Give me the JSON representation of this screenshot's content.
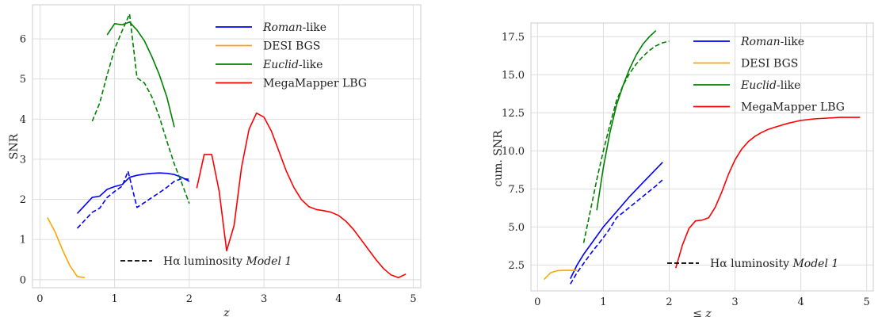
{
  "chart_data": [
    {
      "type": "line",
      "ylabel": "SNR",
      "xlabel": "z",
      "xlim": [
        -0.1,
        5.1
      ],
      "ylim": [
        -0.2,
        6.85
      ],
      "xticks": [
        0,
        1,
        2,
        3,
        4,
        5
      ],
      "yticks": [
        0,
        1,
        2,
        3,
        4,
        5,
        6
      ],
      "grid": true,
      "legend_position": "top-right",
      "style_note": "Hα luminosity Model 1",
      "series": [
        {
          "name": "Roman-like",
          "name_italic": "Roman",
          "name_rest": "-like",
          "color": "#0000ff",
          "dash": false,
          "x": [
            0.5,
            0.7,
            0.8,
            0.9,
            1.0,
            1.1,
            1.2,
            1.3,
            1.4,
            1.5,
            1.6,
            1.7,
            1.8,
            1.9,
            2.0
          ],
          "y": [
            1.65,
            2.05,
            2.08,
            2.25,
            2.32,
            2.37,
            2.55,
            2.6,
            2.63,
            2.65,
            2.66,
            2.65,
            2.62,
            2.55,
            2.45
          ]
        },
        {
          "name": "Roman-like",
          "color": "#0000ff",
          "dash": true,
          "x": [
            0.5,
            0.7,
            0.8,
            0.9,
            1.0,
            1.1,
            1.18,
            1.3,
            1.4,
            1.5,
            1.6,
            1.7,
            1.8,
            1.9,
            2.0
          ],
          "y": [
            1.28,
            1.68,
            1.78,
            2.05,
            2.2,
            2.33,
            2.7,
            1.8,
            1.92,
            2.05,
            2.17,
            2.3,
            2.45,
            2.52,
            2.5
          ]
        },
        {
          "name": "DESI BGS",
          "color": "#ffa500",
          "dash": false,
          "x": [
            0.1,
            0.2,
            0.3,
            0.4,
            0.5,
            0.6
          ],
          "y": [
            1.55,
            1.2,
            0.75,
            0.35,
            0.08,
            0.05
          ]
        },
        {
          "name": "Euclid-like",
          "name_italic": "Euclid",
          "name_rest": "-like",
          "color": "#008000",
          "dash": false,
          "x": [
            0.9,
            1.0,
            1.1,
            1.2,
            1.3,
            1.4,
            1.5,
            1.6,
            1.7,
            1.8
          ],
          "y": [
            6.1,
            6.38,
            6.35,
            6.42,
            6.22,
            5.95,
            5.55,
            5.1,
            4.55,
            3.8
          ]
        },
        {
          "name": "Euclid-like",
          "color": "#008000",
          "dash": true,
          "x": [
            0.7,
            0.8,
            0.9,
            1.0,
            1.1,
            1.2,
            1.3,
            1.4,
            1.5,
            1.6,
            1.7,
            1.8,
            1.9,
            2.0
          ],
          "y": [
            3.95,
            4.4,
            5.1,
            5.75,
            6.2,
            6.62,
            5.03,
            4.9,
            4.55,
            4.05,
            3.45,
            2.88,
            2.4,
            1.9
          ]
        },
        {
          "name": "MegaMapper LBG",
          "color": "#ff0000",
          "dash": false,
          "x": [
            2.1,
            2.2,
            2.3,
            2.4,
            2.5,
            2.6,
            2.7,
            2.8,
            2.9,
            3.0,
            3.1,
            3.2,
            3.3,
            3.4,
            3.5,
            3.6,
            3.7,
            3.8,
            3.9,
            4.0,
            4.1,
            4.2,
            4.3,
            4.4,
            4.5,
            4.6,
            4.7,
            4.8,
            4.9
          ],
          "y": [
            2.28,
            3.12,
            3.12,
            2.2,
            0.72,
            1.35,
            2.8,
            3.75,
            4.15,
            4.05,
            3.7,
            3.2,
            2.7,
            2.3,
            2.0,
            1.82,
            1.75,
            1.72,
            1.68,
            1.6,
            1.45,
            1.25,
            1.0,
            0.75,
            0.5,
            0.28,
            0.12,
            0.05,
            0.14
          ]
        }
      ]
    },
    {
      "type": "line",
      "ylabel": "cum. SNR",
      "xlabel": "≤ z",
      "xlim": [
        -0.1,
        5.1
      ],
      "ylim": [
        0.8,
        18.4
      ],
      "xticks": [
        0,
        1,
        2,
        3,
        4,
        5
      ],
      "yticks": [
        2.5,
        5.0,
        7.5,
        10.0,
        12.5,
        15.0,
        17.5
      ],
      "ytick_labels": [
        "2.5",
        "5.0",
        "7.5",
        "10.0",
        "12.5",
        "15.0",
        "17.5"
      ],
      "grid": true,
      "legend_position": "top-right",
      "style_note": "Hα luminosity Model 1",
      "series": [
        {
          "name": "Roman-like",
          "name_italic": "Roman",
          "name_rest": "-like",
          "color": "#0000ff",
          "dash": false,
          "x": [
            0.5,
            0.6,
            0.7,
            0.8,
            0.9,
            1.0,
            1.2,
            1.4,
            1.6,
            1.8,
            1.9
          ],
          "y": [
            1.6,
            2.5,
            3.2,
            3.8,
            4.4,
            5.0,
            6.0,
            7.0,
            7.9,
            8.8,
            9.25
          ]
        },
        {
          "name": "Roman-like",
          "color": "#0000ff",
          "dash": true,
          "x": [
            0.5,
            0.6,
            0.7,
            0.8,
            0.9,
            1.0,
            1.1,
            1.2,
            1.4,
            1.6,
            1.8,
            1.9
          ],
          "y": [
            1.25,
            2.0,
            2.6,
            3.2,
            3.75,
            4.3,
            4.9,
            5.6,
            6.3,
            7.0,
            7.7,
            8.1
          ]
        },
        {
          "name": "DESI BGS",
          "color": "#ffa500",
          "dash": false,
          "x": [
            0.1,
            0.2,
            0.3,
            0.4,
            0.5,
            0.6
          ],
          "y": [
            1.55,
            2.0,
            2.12,
            2.15,
            2.15,
            2.15
          ]
        },
        {
          "name": "Euclid-like",
          "name_italic": "Euclid",
          "name_rest": "-like",
          "color": "#008000",
          "dash": false,
          "x": [
            0.9,
            1.0,
            1.1,
            1.2,
            1.3,
            1.4,
            1.5,
            1.6,
            1.7,
            1.8
          ],
          "y": [
            6.1,
            8.9,
            11.2,
            13.0,
            14.3,
            15.4,
            16.3,
            17.0,
            17.5,
            17.9
          ]
        },
        {
          "name": "Euclid-like",
          "color": "#008000",
          "dash": true,
          "x": [
            0.7,
            0.8,
            0.9,
            1.0,
            1.1,
            1.2,
            1.3,
            1.4,
            1.5,
            1.6,
            1.7,
            1.8,
            1.9,
            2.0
          ],
          "y": [
            3.95,
            6.0,
            8.1,
            10.0,
            11.7,
            13.3,
            14.3,
            15.1,
            15.7,
            16.2,
            16.6,
            16.9,
            17.1,
            17.2
          ]
        },
        {
          "name": "MegaMapper LBG",
          "color": "#ff0000",
          "dash": false,
          "x": [
            2.1,
            2.2,
            2.3,
            2.4,
            2.5,
            2.6,
            2.7,
            2.8,
            2.9,
            3.0,
            3.1,
            3.2,
            3.3,
            3.4,
            3.5,
            3.6,
            3.8,
            4.0,
            4.2,
            4.4,
            4.6,
            4.8,
            4.9
          ],
          "y": [
            2.3,
            3.8,
            4.9,
            5.4,
            5.45,
            5.6,
            6.3,
            7.3,
            8.45,
            9.4,
            10.1,
            10.6,
            10.95,
            11.2,
            11.4,
            11.55,
            11.8,
            12.0,
            12.1,
            12.15,
            12.2,
            12.2,
            12.2
          ]
        }
      ]
    }
  ],
  "legend_note": {
    "prefix": "Hα luminosity ",
    "model": "Model 1"
  }
}
